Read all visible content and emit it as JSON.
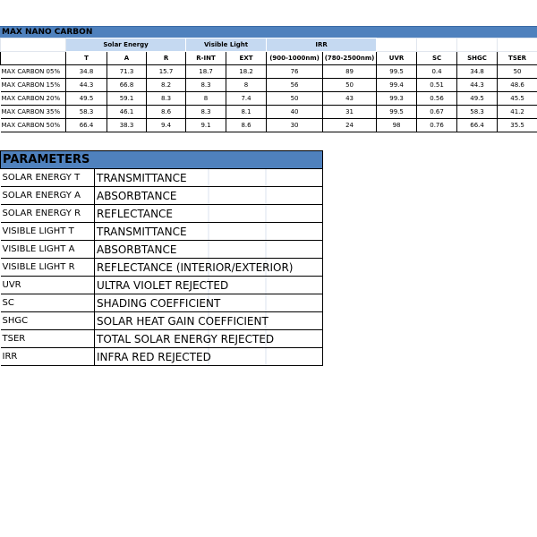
{
  "colors": {
    "header_blue": "#4f81bd",
    "group_header": "#c5d9f1"
  },
  "title": "MAX NANO CARBON",
  "groups": {
    "solar": "Solar Energy",
    "visible": "Visible Light",
    "irr": "IRR"
  },
  "columns": [
    "T",
    "A",
    "R",
    "R-INT",
    "EXT",
    "(900-1000nm)",
    "(780-2500nm)",
    "UVR",
    "SC",
    "SHGC",
    "TSER"
  ],
  "rows": [
    {
      "label": "MAX CARBON 05%",
      "values": [
        "34.8",
        "71.3",
        "15.7",
        "18.7",
        "18.2",
        "76",
        "89",
        "99.5",
        "0.4",
        "34.8",
        "50"
      ]
    },
    {
      "label": "MAX CARBON 15%",
      "values": [
        "44.3",
        "66.8",
        "8.2",
        "8.3",
        "8",
        "56",
        "50",
        "99.4",
        "0.51",
        "44.3",
        "48.6"
      ]
    },
    {
      "label": "MAX CARBON 20%",
      "values": [
        "49.5",
        "59.1",
        "8.3",
        "8",
        "7.4",
        "50",
        "43",
        "99.3",
        "0.56",
        "49.5",
        "45.5"
      ]
    },
    {
      "label": "MAX CARBON 35%",
      "values": [
        "58.3",
        "46.1",
        "8.6",
        "8.3",
        "8.1",
        "40",
        "31",
        "99.5",
        "0.67",
        "58.3",
        "41.2"
      ]
    },
    {
      "label": "MAX CARBON 50%",
      "values": [
        "66.4",
        "38.3",
        "9.4",
        "9.1",
        "8.6",
        "30",
        "24",
        "98",
        "0.76",
        "66.4",
        "35.5"
      ]
    }
  ],
  "parameters": {
    "title": "PARAMETERS",
    "items": [
      {
        "key": "SOLAR ENERGY T",
        "value": "TRANSMITTANCE"
      },
      {
        "key": "SOLAR ENERGY A",
        "value": "ABSORBTANCE"
      },
      {
        "key": "SOLAR ENERGY R",
        "value": "REFLECTANCE"
      },
      {
        "key": "VISIBLE LIGHT T",
        "value": "TRANSMITTANCE"
      },
      {
        "key": "VISIBLE LIGHT A",
        "value": "ABSORBTANCE"
      },
      {
        "key": "VISIBLE LIGHT R",
        "value": "REFLECTANCE (INTERIOR/EXTERIOR)"
      },
      {
        "key": "UVR",
        "value": "ULTRA VIOLET REJECTED"
      },
      {
        "key": "SC",
        "value": "SHADING COEFFICIENT"
      },
      {
        "key": "SHGC",
        "value": "SOLAR HEAT GAIN COEFFICIENT"
      },
      {
        "key": "TSER",
        "value": "TOTAL SOLAR ENERGY REJECTED"
      },
      {
        "key": "IRR",
        "value": "INFRA RED REJECTED"
      }
    ]
  }
}
